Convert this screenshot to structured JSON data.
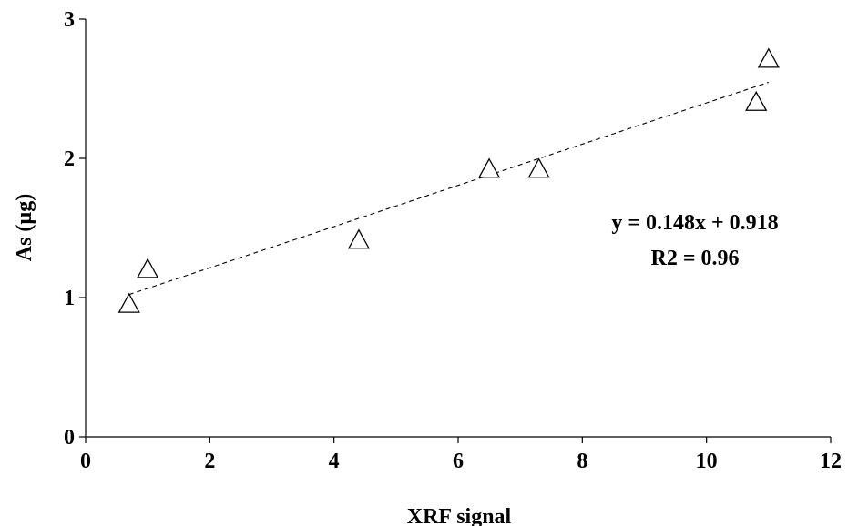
{
  "chart_data": {
    "type": "scatter",
    "title": "",
    "xlabel": "XRF signal",
    "ylabel": "As (µg)",
    "xlim": [
      0,
      12
    ],
    "ylim": [
      0,
      3
    ],
    "xticks": [
      "0",
      "2",
      "4",
      "6",
      "8",
      "10",
      "12"
    ],
    "yticks": [
      "0",
      "1",
      "2",
      "3"
    ],
    "grid": false,
    "marker": "open-triangle",
    "points": [
      {
        "x": 0.7,
        "y": 0.96
      },
      {
        "x": 1.0,
        "y": 1.21
      },
      {
        "x": 4.4,
        "y": 1.42
      },
      {
        "x": 6.5,
        "y": 1.93
      },
      {
        "x": 7.3,
        "y": 1.93
      },
      {
        "x": 10.8,
        "y": 2.41
      },
      {
        "x": 11.0,
        "y": 2.72
      }
    ],
    "trendline": {
      "slope": 0.148,
      "intercept": 0.918,
      "x_range": [
        0.7,
        11.0
      ],
      "style": "dashed"
    },
    "annotations": [
      "y = 0.148x + 0.918",
      "R2 = 0.96"
    ]
  }
}
